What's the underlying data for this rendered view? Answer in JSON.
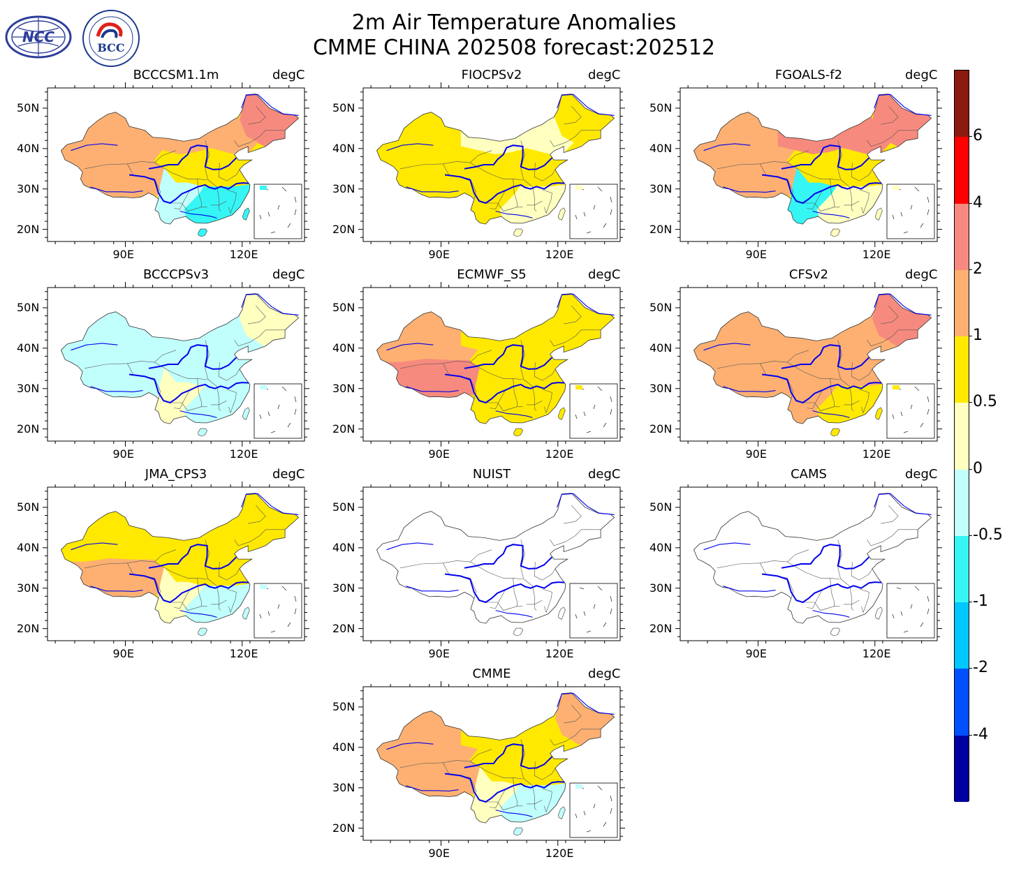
{
  "title": {
    "line1": "2m Air Temperature Anomalies",
    "line2": "CMME CHINA 202508 forecast:202512"
  },
  "logos": [
    {
      "name": "NCC",
      "text": "NCC",
      "colors": {
        "primary": "#2c3d9a"
      }
    },
    {
      "name": "BCC",
      "text": "BCC",
      "colors": {
        "primary": "#1b3a8c",
        "accent": "#e0201b"
      }
    }
  ],
  "unit": "degC",
  "axes": {
    "lat_ticks": [
      "50N",
      "40N",
      "30N",
      "20N"
    ],
    "lon_ticks": [
      "90E",
      "120E"
    ]
  },
  "panels": [
    {
      "model": "BCCCSM1.1m",
      "fill": "mixed",
      "regions": {
        "northeast": "#f78a7e",
        "north": "#fdb072",
        "northwest": "#fdb072",
        "tibet": "#fdb072",
        "center": "#ffe900",
        "south": "#36f5f5",
        "southwest": "#c1fffd"
      }
    },
    {
      "model": "FIOCPSv2",
      "fill": "mixed",
      "regions": {
        "northeast": "#ffe900",
        "north": "#ffffbf",
        "northwest": "#ffe900",
        "tibet": "#ffe900",
        "center": "#ffe900",
        "south": "#ffffbf",
        "southwest": "#ffe900"
      }
    },
    {
      "model": "FGOALS-f2",
      "fill": "mixed",
      "regions": {
        "northeast": "#f78a7e",
        "north": "#f78a7e",
        "northwest": "#fdb072",
        "tibet": "#fdb072",
        "center": "#ffe900",
        "south": "#ffffbf",
        "southwest": "#36f5f5"
      }
    },
    {
      "model": "BCCCPSv3",
      "fill": "mixed",
      "regions": {
        "northeast": "#ffffbf",
        "north": "#c1fffd",
        "northwest": "#c1fffd",
        "tibet": "#c1fffd",
        "center": "#c1fffd",
        "south": "#c1fffd",
        "southwest": "#ffffbf"
      }
    },
    {
      "model": "ECMWF_S5",
      "fill": "mixed",
      "regions": {
        "northeast": "#ffe900",
        "north": "#ffe900",
        "northwest": "#fdb072",
        "tibet": "#f78a7e",
        "center": "#ffe900",
        "south": "#ffe900",
        "southwest": "#ffe900"
      }
    },
    {
      "model": "CFSv2",
      "fill": "mixed",
      "regions": {
        "northeast": "#f78a7e",
        "north": "#fdb072",
        "northwest": "#fdb072",
        "tibet": "#fdb072",
        "center": "#fdb072",
        "south": "#ffe900",
        "southwest": "#fdb072"
      }
    },
    {
      "model": "JMA_CPS3",
      "fill": "mixed",
      "regions": {
        "northeast": "#ffe900",
        "north": "#ffe900",
        "northwest": "#ffe900",
        "tibet": "#fdb072",
        "center": "#ffe900",
        "south": "#c1fffd",
        "southwest": "#ffffbf"
      }
    },
    {
      "model": "NUIST",
      "fill": "none",
      "regions": {}
    },
    {
      "model": "CAMS",
      "fill": "none",
      "regions": {}
    },
    {
      "model": "CMME",
      "fill": "mixed",
      "regions": {
        "northeast": "#fdb072",
        "north": "#ffe900",
        "northwest": "#fdb072",
        "tibet": "#fdb072",
        "center": "#ffe900",
        "south": "#c1fffd",
        "southwest": "#ffffbf"
      }
    }
  ],
  "colorbar": {
    "labels": [
      "6",
      "4",
      "2",
      "1",
      "0.5",
      "0",
      "-0.5",
      "-1",
      "-2",
      "-4"
    ],
    "colors": [
      "#8b1a10",
      "#ff0000",
      "#f78a7e",
      "#fdb072",
      "#ffe900",
      "#ffffbf",
      "#c1fffd",
      "#36f5f5",
      "#00c8ff",
      "#0050ff",
      "#0000a0"
    ]
  },
  "colors": {
    "river": "#0000ee",
    "border": "#555555"
  }
}
